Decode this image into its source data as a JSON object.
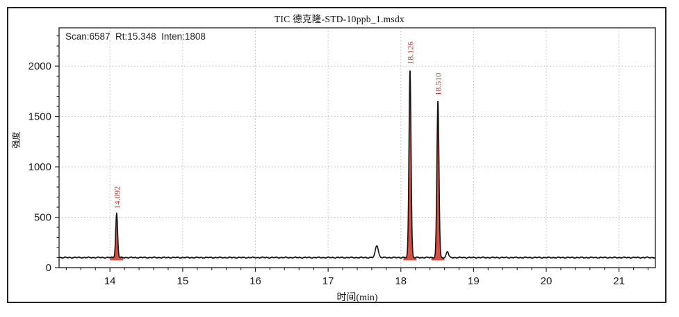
{
  "window": {
    "title": "TIC 德克隆-STD-10ppb_1.msdx"
  },
  "chart_data": {
    "type": "line",
    "title": "TIC 德克隆-STD-10ppb_1.msdx",
    "annotation": "Scan:6587  Rt:15.348  Inten:1808",
    "xlabel": "时间(min)",
    "ylabel": "强度",
    "xlim": [
      13.3,
      21.5
    ],
    "ylim": [
      0,
      2380
    ],
    "x_major_ticks": [
      14,
      15,
      16,
      17,
      18,
      19,
      20,
      21
    ],
    "x_minor_step": 0.2,
    "y_major_ticks": [
      0,
      500,
      1000,
      1500,
      2000
    ],
    "y_minor_step": 100,
    "grid": true,
    "legend": "none",
    "baseline_intensity": 100,
    "noise_amplitude": 7,
    "peaks": [
      {
        "rt": 14.092,
        "apex_intensity": 540,
        "sigma_min": 0.013,
        "label": "14.092",
        "labeled": true,
        "integrated": true
      },
      {
        "rt": 17.67,
        "apex_intensity": 222,
        "sigma_min": 0.02,
        "label": "",
        "labeled": false,
        "integrated": false
      },
      {
        "rt": 18.126,
        "apex_intensity": 1975,
        "sigma_min": 0.014,
        "label": "18.126",
        "labeled": true,
        "integrated": true
      },
      {
        "rt": 18.51,
        "apex_intensity": 1665,
        "sigma_min": 0.014,
        "label": "18.510",
        "labeled": true,
        "integrated": true
      },
      {
        "rt": 18.64,
        "apex_intensity": 162,
        "sigma_min": 0.015,
        "label": "",
        "labeled": false,
        "integrated": false
      }
    ],
    "colors": {
      "trace": "#141414",
      "peak_label": "#b23b35",
      "peak_fill": "#d94f43",
      "grid": "#b9b9b9",
      "axis": "#2a2a2a",
      "text": "#1c1c1c",
      "background": "#ffffff"
    }
  }
}
